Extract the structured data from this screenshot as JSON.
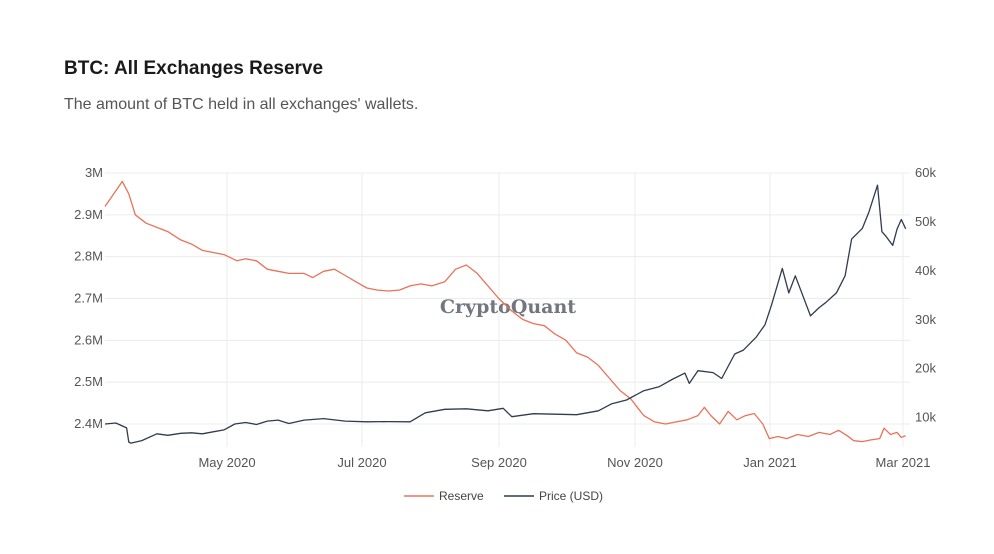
{
  "chart_data": {
    "type": "line",
    "title": "BTC: All Exchanges Reserve",
    "subtitle": "The amount of BTC held in all exchanges' wallets.",
    "watermark": "CryptoQuant",
    "x_tick_labels": [
      "May 2020",
      "Jul 2020",
      "Sep 2020",
      "Nov 2020",
      "Jan 2021",
      "Mar 2021"
    ],
    "y_left_ticks": [
      {
        "value": 2400000,
        "label": "2.4M"
      },
      {
        "value": 2500000,
        "label": "2.5M"
      },
      {
        "value": 2600000,
        "label": "2.6M"
      },
      {
        "value": 2700000,
        "label": "2.7M"
      },
      {
        "value": 2800000,
        "label": "2.8M"
      },
      {
        "value": 2900000,
        "label": "2.9M"
      },
      {
        "value": 3000000,
        "label": "3M"
      }
    ],
    "y_right_ticks": [
      {
        "value": 10000,
        "label": "10k"
      },
      {
        "value": 20000,
        "label": "20k"
      },
      {
        "value": 30000,
        "label": "30k"
      },
      {
        "value": 40000,
        "label": "40k"
      },
      {
        "value": 50000,
        "label": "50k"
      },
      {
        "value": 60000,
        "label": "60k"
      }
    ],
    "x_range": [
      "2020-03-01",
      "2021-03-08"
    ],
    "y_left_range": [
      2345000,
      3000000
    ],
    "y_right_range": [
      4000,
      60000
    ],
    "legend_position": "bottom-center",
    "series": [
      {
        "name": "Reserve",
        "axis": "left",
        "color": "#e8735a",
        "points": [
          [
            "2020-03-01",
            2920000
          ],
          [
            "2020-03-05",
            2950000
          ],
          [
            "2020-03-09",
            2980000
          ],
          [
            "2020-03-12",
            2950000
          ],
          [
            "2020-03-15",
            2900000
          ],
          [
            "2020-03-20",
            2880000
          ],
          [
            "2020-03-25",
            2870000
          ],
          [
            "2020-03-30",
            2860000
          ],
          [
            "2020-04-05",
            2840000
          ],
          [
            "2020-04-10",
            2830000
          ],
          [
            "2020-04-15",
            2815000
          ],
          [
            "2020-04-20",
            2810000
          ],
          [
            "2020-04-25",
            2805000
          ],
          [
            "2020-05-01",
            2790000
          ],
          [
            "2020-05-05",
            2795000
          ],
          [
            "2020-05-10",
            2790000
          ],
          [
            "2020-05-15",
            2770000
          ],
          [
            "2020-05-20",
            2765000
          ],
          [
            "2020-05-25",
            2760000
          ],
          [
            "2020-06-01",
            2760000
          ],
          [
            "2020-06-05",
            2750000
          ],
          [
            "2020-06-10",
            2765000
          ],
          [
            "2020-06-15",
            2770000
          ],
          [
            "2020-06-20",
            2755000
          ],
          [
            "2020-06-25",
            2740000
          ],
          [
            "2020-06-30",
            2725000
          ],
          [
            "2020-07-05",
            2720000
          ],
          [
            "2020-07-10",
            2718000
          ],
          [
            "2020-07-15",
            2720000
          ],
          [
            "2020-07-20",
            2730000
          ],
          [
            "2020-07-25",
            2735000
          ],
          [
            "2020-07-30",
            2730000
          ],
          [
            "2020-08-05",
            2740000
          ],
          [
            "2020-08-10",
            2770000
          ],
          [
            "2020-08-15",
            2780000
          ],
          [
            "2020-08-20",
            2760000
          ],
          [
            "2020-08-25",
            2730000
          ],
          [
            "2020-08-30",
            2700000
          ],
          [
            "2020-09-05",
            2670000
          ],
          [
            "2020-09-10",
            2650000
          ],
          [
            "2020-09-15",
            2640000
          ],
          [
            "2020-09-20",
            2635000
          ],
          [
            "2020-09-25",
            2615000
          ],
          [
            "2020-09-30",
            2600000
          ],
          [
            "2020-10-05",
            2570000
          ],
          [
            "2020-10-10",
            2560000
          ],
          [
            "2020-10-15",
            2540000
          ],
          [
            "2020-10-20",
            2510000
          ],
          [
            "2020-10-25",
            2480000
          ],
          [
            "2020-10-30",
            2460000
          ],
          [
            "2020-11-02",
            2440000
          ],
          [
            "2020-11-05",
            2420000
          ],
          [
            "2020-11-10",
            2405000
          ],
          [
            "2020-11-15",
            2400000
          ],
          [
            "2020-11-20",
            2405000
          ],
          [
            "2020-11-25",
            2410000
          ],
          [
            "2020-11-30",
            2420000
          ],
          [
            "2020-12-03",
            2440000
          ],
          [
            "2020-12-06",
            2420000
          ],
          [
            "2020-12-10",
            2400000
          ],
          [
            "2020-12-14",
            2430000
          ],
          [
            "2020-12-18",
            2410000
          ],
          [
            "2020-12-22",
            2420000
          ],
          [
            "2020-12-26",
            2425000
          ],
          [
            "2020-12-30",
            2400000
          ],
          [
            "2021-01-02",
            2365000
          ],
          [
            "2021-01-06",
            2370000
          ],
          [
            "2021-01-10",
            2365000
          ],
          [
            "2021-01-15",
            2375000
          ],
          [
            "2021-01-20",
            2370000
          ],
          [
            "2021-01-25",
            2380000
          ],
          [
            "2021-01-30",
            2375000
          ],
          [
            "2021-02-03",
            2385000
          ],
          [
            "2021-02-07",
            2372000
          ],
          [
            "2021-02-10",
            2360000
          ],
          [
            "2021-02-14",
            2358000
          ],
          [
            "2021-02-18",
            2362000
          ],
          [
            "2021-02-22",
            2365000
          ],
          [
            "2021-02-24",
            2390000
          ],
          [
            "2021-02-27",
            2375000
          ],
          [
            "2021-03-02",
            2380000
          ],
          [
            "2021-03-04",
            2368000
          ],
          [
            "2021-03-06",
            2372000
          ]
        ]
      },
      {
        "name": "Price (USD)",
        "axis": "right",
        "color": "#2f3c50",
        "points": [
          [
            "2020-03-01",
            8700
          ],
          [
            "2020-03-06",
            8900
          ],
          [
            "2020-03-11",
            7900
          ],
          [
            "2020-03-12",
            5000
          ],
          [
            "2020-03-13",
            4800
          ],
          [
            "2020-03-18",
            5300
          ],
          [
            "2020-03-25",
            6700
          ],
          [
            "2020-03-30",
            6400
          ],
          [
            "2020-04-05",
            6800
          ],
          [
            "2020-04-10",
            6900
          ],
          [
            "2020-04-15",
            6700
          ],
          [
            "2020-04-20",
            7100
          ],
          [
            "2020-04-25",
            7500
          ],
          [
            "2020-04-30",
            8700
          ],
          [
            "2020-05-05",
            9000
          ],
          [
            "2020-05-10",
            8600
          ],
          [
            "2020-05-15",
            9300
          ],
          [
            "2020-05-20",
            9500
          ],
          [
            "2020-05-25",
            8800
          ],
          [
            "2020-06-01",
            9500
          ],
          [
            "2020-06-10",
            9800
          ],
          [
            "2020-06-20",
            9300
          ],
          [
            "2020-06-30",
            9150
          ],
          [
            "2020-07-10",
            9200
          ],
          [
            "2020-07-20",
            9150
          ],
          [
            "2020-07-27",
            11000
          ],
          [
            "2020-08-05",
            11700
          ],
          [
            "2020-08-15",
            11800
          ],
          [
            "2020-08-25",
            11400
          ],
          [
            "2020-09-01",
            11900
          ],
          [
            "2020-09-05",
            10200
          ],
          [
            "2020-09-15",
            10800
          ],
          [
            "2020-09-25",
            10700
          ],
          [
            "2020-10-05",
            10600
          ],
          [
            "2020-10-15",
            11400
          ],
          [
            "2020-10-21",
            12800
          ],
          [
            "2020-10-28",
            13600
          ],
          [
            "2020-11-05",
            15500
          ],
          [
            "2020-11-12",
            16300
          ],
          [
            "2020-11-18",
            17800
          ],
          [
            "2020-11-24",
            19100
          ],
          [
            "2020-11-26",
            17000
          ],
          [
            "2020-11-30",
            19600
          ],
          [
            "2020-12-07",
            19200
          ],
          [
            "2020-12-11",
            18000
          ],
          [
            "2020-12-17",
            23000
          ],
          [
            "2020-12-21",
            23800
          ],
          [
            "2020-12-27",
            26500
          ],
          [
            "2020-12-31",
            29000
          ],
          [
            "2021-01-03",
            33000
          ],
          [
            "2021-01-08",
            40500
          ],
          [
            "2021-01-11",
            35500
          ],
          [
            "2021-01-14",
            39000
          ],
          [
            "2021-01-21",
            30800
          ],
          [
            "2021-01-25",
            32500
          ],
          [
            "2021-01-28",
            33500
          ],
          [
            "2021-02-02",
            35500
          ],
          [
            "2021-02-06",
            39000
          ],
          [
            "2021-02-09",
            46500
          ],
          [
            "2021-02-14",
            48700
          ],
          [
            "2021-02-17",
            52000
          ],
          [
            "2021-02-21",
            57500
          ],
          [
            "2021-02-23",
            48000
          ],
          [
            "2021-02-25",
            47000
          ],
          [
            "2021-02-28",
            45200
          ],
          [
            "2021-03-02",
            48500
          ],
          [
            "2021-03-04",
            50500
          ],
          [
            "2021-03-06",
            48600
          ]
        ]
      }
    ]
  }
}
